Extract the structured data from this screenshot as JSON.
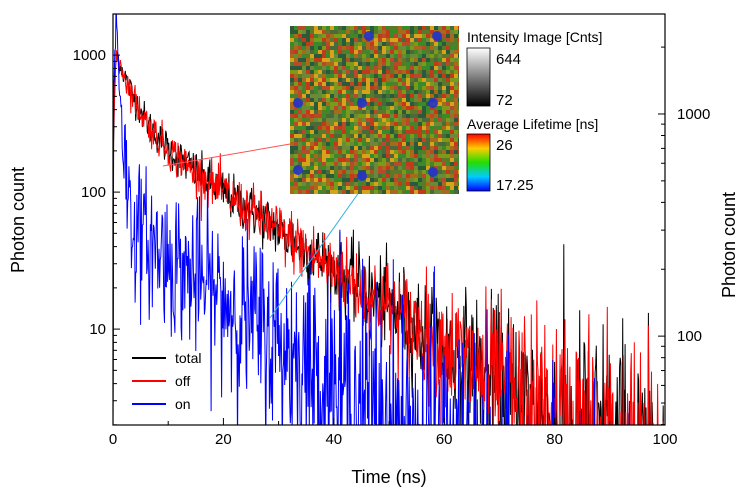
{
  "chart_data": {
    "type": "line",
    "xlabel": "Time (ns)",
    "ylabel": "Photon count",
    "ylabel_right": "Photon count",
    "xlim": [
      0,
      100
    ],
    "ylim_log10": [
      0.3,
      3.3
    ],
    "yscale": "log",
    "x_ticks": [
      0,
      20,
      40,
      60,
      80,
      100
    ],
    "y_ticks": [
      10,
      100,
      1000
    ],
    "y_ticks_right": [
      100,
      1000
    ],
    "y_right_lim_log10": [
      1.6,
      3.45
    ],
    "series": [
      {
        "name": "total",
        "color": "#000000",
        "tau1": 2.6,
        "tau2": 15.5,
        "a1": 700,
        "a2": 350,
        "noise": 0.07
      },
      {
        "name": "off",
        "color": "#ff0000",
        "tau1": 2.6,
        "tau2": 15.5,
        "a1": 700,
        "a2": 345,
        "noise": 0.08
      },
      {
        "name": "on",
        "color": "#0000ff",
        "tau1": 0.55,
        "tau2": 14.0,
        "a1": 1900,
        "a2": 65,
        "noise": 0.4
      }
    ],
    "legend_position": "bottom-left",
    "inset": {
      "intensity_title": "Intensity Image [Cnts]",
      "intensity_max": "644",
      "intensity_min": "72",
      "lifetime_title": "Average Lifetime [ns]",
      "lifetime_max": "26",
      "lifetime_min": "17.25"
    }
  }
}
